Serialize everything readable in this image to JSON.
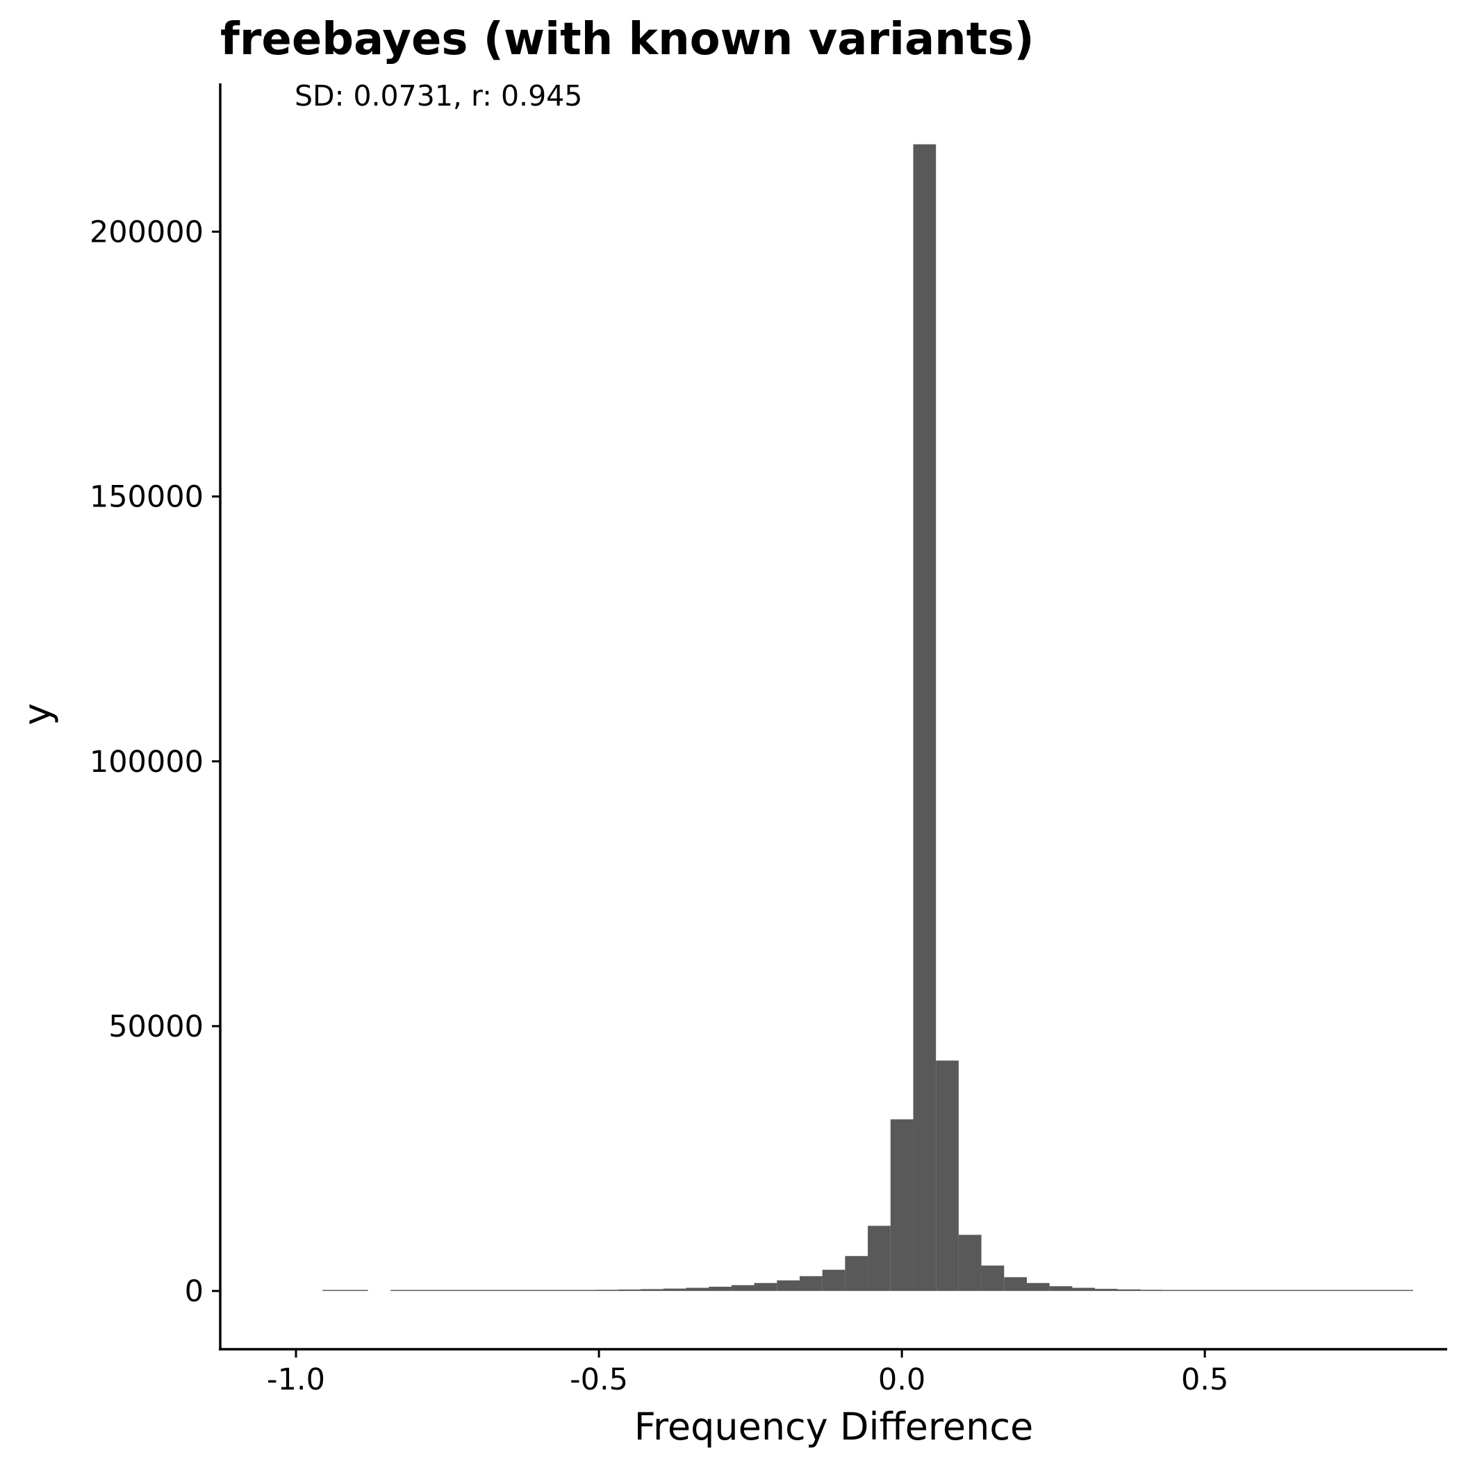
{
  "chart_data": {
    "type": "bar",
    "title": "freebayes (with known variants)",
    "annotation": "SD: 0.0731, r: 0.945",
    "xlabel": "Frequency Difference",
    "ylabel": "y",
    "xlim": [
      -1.125,
      0.9
    ],
    "ylim": [
      -11000,
      228000
    ],
    "x_ticks": [
      -1.0,
      -0.5,
      0.0,
      0.5
    ],
    "x_tick_labels": [
      "-1.0",
      "-0.5",
      "0.0",
      "0.5"
    ],
    "y_ticks": [
      0,
      50000,
      100000,
      150000,
      200000
    ],
    "y_tick_labels": [
      "0",
      "50000",
      "100000",
      "150000",
      "200000"
    ],
    "bin_width": 0.0375,
    "bar_color": "#595959",
    "grid": false,
    "bins": [
      {
        "x": -0.9375,
        "y": 20
      },
      {
        "x": -0.9,
        "y": 25
      },
      {
        "x": -0.825,
        "y": 30
      },
      {
        "x": -0.7875,
        "y": 35
      },
      {
        "x": -0.75,
        "y": 40
      },
      {
        "x": -0.7125,
        "y": 60
      },
      {
        "x": -0.675,
        "y": 70
      },
      {
        "x": -0.6375,
        "y": 80
      },
      {
        "x": -0.6,
        "y": 100
      },
      {
        "x": -0.5625,
        "y": 150
      },
      {
        "x": -0.525,
        "y": 180
      },
      {
        "x": -0.4875,
        "y": 220
      },
      {
        "x": -0.45,
        "y": 270
      },
      {
        "x": -0.4125,
        "y": 350
      },
      {
        "x": -0.375,
        "y": 450
      },
      {
        "x": -0.3375,
        "y": 600
      },
      {
        "x": -0.3,
        "y": 800
      },
      {
        "x": -0.2625,
        "y": 1100
      },
      {
        "x": -0.225,
        "y": 1500
      },
      {
        "x": -0.1875,
        "y": 2000
      },
      {
        "x": -0.15,
        "y": 2800
      },
      {
        "x": -0.1125,
        "y": 4000
      },
      {
        "x": -0.075,
        "y": 6600
      },
      {
        "x": -0.0375,
        "y": 12300
      },
      {
        "x": 0.0,
        "y": 32400
      },
      {
        "x": 0.0375,
        "y": 216500
      },
      {
        "x": 0.075,
        "y": 43500
      },
      {
        "x": 0.1125,
        "y": 10600
      },
      {
        "x": 0.15,
        "y": 4800
      },
      {
        "x": 0.1875,
        "y": 2600
      },
      {
        "x": 0.225,
        "y": 1500
      },
      {
        "x": 0.2625,
        "y": 900
      },
      {
        "x": 0.3,
        "y": 600
      },
      {
        "x": 0.3375,
        "y": 400
      },
      {
        "x": 0.375,
        "y": 300
      },
      {
        "x": 0.4125,
        "y": 220
      },
      {
        "x": 0.45,
        "y": 180
      },
      {
        "x": 0.4875,
        "y": 150
      },
      {
        "x": 0.525,
        "y": 120
      },
      {
        "x": 0.5625,
        "y": 100
      },
      {
        "x": 0.6,
        "y": 80
      },
      {
        "x": 0.6375,
        "y": 70
      },
      {
        "x": 0.675,
        "y": 60
      },
      {
        "x": 0.7125,
        "y": 50
      },
      {
        "x": 0.75,
        "y": 40
      },
      {
        "x": 0.7875,
        "y": 35
      },
      {
        "x": 0.825,
        "y": 30
      }
    ]
  }
}
